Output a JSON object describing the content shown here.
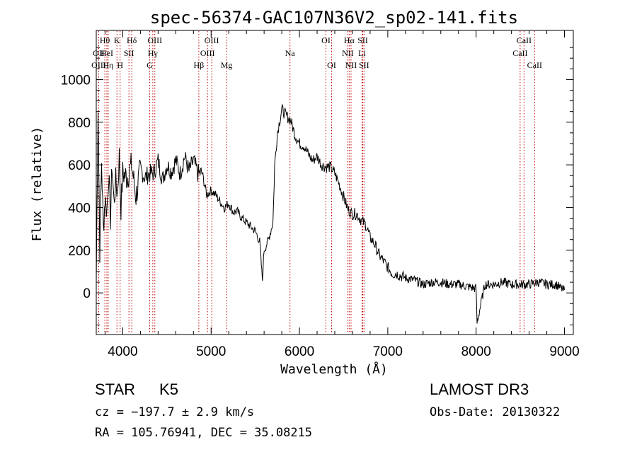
{
  "chart_data": {
    "type": "line",
    "title": "spec-56374-GAC107N36V2_sp02-141.fits",
    "xlabel": "Wavelength (Å)",
    "ylabel": "Flux (relative)",
    "xlim": [
      3700,
      9100
    ],
    "ylim": [
      -195,
      1230
    ],
    "xticks": [
      4000,
      5000,
      6000,
      7000,
      8000,
      9000
    ],
    "yticks": [
      0,
      200,
      400,
      600,
      800,
      1000
    ],
    "series": [
      {
        "name": "flux",
        "x": [
          3700,
          3720,
          3740,
          3760,
          3780,
          3800,
          3820,
          3840,
          3860,
          3880,
          3900,
          3920,
          3940,
          3960,
          3980,
          4000,
          4050,
          4100,
          4150,
          4200,
          4250,
          4300,
          4350,
          4400,
          4450,
          4500,
          4550,
          4600,
          4650,
          4700,
          4750,
          4800,
          4850,
          4900,
          4950,
          5000,
          5050,
          5100,
          5150,
          5200,
          5250,
          5300,
          5350,
          5400,
          5450,
          5500,
          5550,
          5580,
          5600,
          5650,
          5700,
          5720,
          5750,
          5800,
          5850,
          5900,
          5950,
          6000,
          6050,
          6100,
          6150,
          6200,
          6250,
          6300,
          6350,
          6400,
          6450,
          6500,
          6550,
          6600,
          6650,
          6700,
          6750,
          6800,
          6850,
          6900,
          6950,
          7000,
          7050,
          7100,
          7150,
          7200,
          7300,
          7400,
          7500,
          7600,
          7700,
          7800,
          7900,
          8000,
          8010,
          8100,
          8200,
          8300,
          8400,
          8500,
          8600,
          8700,
          8800,
          8900,
          9000
        ],
        "y": [
          50,
          880,
          200,
          620,
          300,
          450,
          380,
          560,
          350,
          600,
          420,
          520,
          470,
          640,
          400,
          560,
          540,
          600,
          450,
          580,
          540,
          560,
          560,
          620,
          530,
          600,
          570,
          620,
          560,
          640,
          570,
          620,
          560,
          560,
          460,
          480,
          460,
          430,
          400,
          420,
          380,
          380,
          350,
          330,
          310,
          290,
          240,
          60,
          200,
          250,
          330,
          600,
          750,
          860,
          830,
          810,
          740,
          700,
          690,
          650,
          620,
          640,
          600,
          590,
          590,
          560,
          510,
          450,
          390,
          370,
          370,
          340,
          320,
          260,
          230,
          180,
          150,
          120,
          90,
          90,
          80,
          70,
          60,
          40,
          50,
          50,
          40,
          40,
          30,
          20,
          -140,
          40,
          40,
          50,
          40,
          40,
          40,
          50,
          40,
          40,
          10
        ]
      }
    ],
    "lines": [
      {
        "label": "Hθ",
        "x": 3797,
        "row": 1
      },
      {
        "label": "OII",
        "x": 3727,
        "row": 2
      },
      {
        "label": "OIII",
        "x": 3728,
        "row": 3
      },
      {
        "label": "HeI",
        "x": 3820,
        "row": 2
      },
      {
        "label": "Hη",
        "x": 3835,
        "row": 3
      },
      {
        "label": "K",
        "x": 3934,
        "row": 1
      },
      {
        "label": "SII",
        "x": 4070,
        "row": 2
      },
      {
        "label": "H",
        "x": 3970,
        "row": 3
      },
      {
        "label": "Hδ",
        "x": 4102,
        "row": 1
      },
      {
        "label": "OIII",
        "x": 4363,
        "row": 1
      },
      {
        "label": "Hγ",
        "x": 4340,
        "row": 2
      },
      {
        "label": "G",
        "x": 4305,
        "row": 3
      },
      {
        "label": "OIII",
        "x": 5007,
        "row": 1
      },
      {
        "label": "OIII",
        "x": 4959,
        "row": 2
      },
      {
        "label": "Hβ",
        "x": 4861,
        "row": 3
      },
      {
        "label": "Mg",
        "x": 5175,
        "row": 3
      },
      {
        "label": "Na",
        "x": 5893,
        "row": 2
      },
      {
        "label": "OI",
        "x": 6300,
        "row": 1
      },
      {
        "label": "OI",
        "x": 6364,
        "row": 3
      },
      {
        "label": "Hα",
        "x": 6563,
        "row": 1
      },
      {
        "label": "NII",
        "x": 6548,
        "row": 2
      },
      {
        "label": "NII",
        "x": 6584,
        "row": 3
      },
      {
        "label": "SII",
        "x": 6717,
        "row": 1
      },
      {
        "label": "Li",
        "x": 6708,
        "row": 2
      },
      {
        "label": "SII",
        "x": 6731,
        "row": 3
      },
      {
        "label": "CaII",
        "x": 8542,
        "row": 1
      },
      {
        "label": "CaII",
        "x": 8498,
        "row": 2
      },
      {
        "label": "CaII",
        "x": 8662,
        "row": 3
      }
    ]
  },
  "info": {
    "class_label": "STAR",
    "subclass": "K5",
    "survey": "LAMOST DR3",
    "cz": "cz = −197.7 ± 2.9 km/s",
    "obs_date": "Obs-Date: 20130322",
    "coords": "RA = 105.76941, DEC =  35.08215"
  },
  "colors": {
    "line_marker": "#c00000",
    "spectrum": "#000000"
  }
}
